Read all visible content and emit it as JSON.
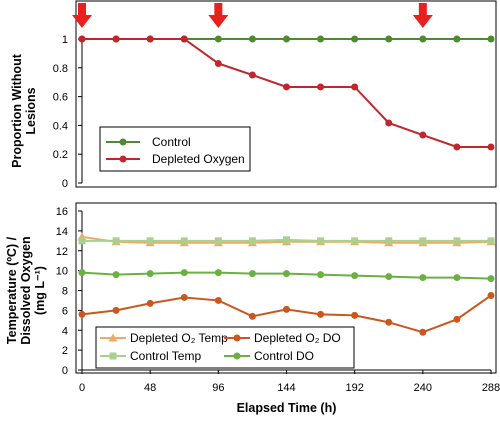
{
  "chart_data": [
    {
      "type": "line",
      "ylabel_lines": [
        "Proportion Without",
        "Lesions"
      ],
      "ylim": [
        0,
        1
      ],
      "yticks": [
        0,
        0.2,
        0.4,
        0.6,
        0.8,
        1
      ],
      "ytick_labels": [
        "0",
        "0.2",
        "0.4",
        "0.6",
        "0.8",
        "1"
      ],
      "xlim": [
        0,
        288
      ],
      "grid": false,
      "legend_position": "bottom-left",
      "arrow_markers_x": [
        0,
        96,
        240
      ],
      "arrow_color": "#e8201e",
      "series": [
        {
          "name": "Control",
          "color": "#4e8a2e",
          "marker": "circle",
          "x": [
            0,
            24,
            48,
            72,
            96,
            120,
            144,
            168,
            192,
            216,
            240,
            264,
            288
          ],
          "values": [
            1,
            1,
            1,
            1,
            1,
            1,
            1,
            1,
            1,
            1,
            1,
            1,
            1
          ]
        },
        {
          "name": "Depleted Oxygen",
          "color": "#c0272d",
          "marker": "circle",
          "x": [
            0,
            24,
            48,
            72,
            96,
            120,
            144,
            168,
            192,
            216,
            240,
            264,
            288
          ],
          "values": [
            1,
            1,
            1,
            1,
            0.83,
            0.75,
            0.667,
            0.667,
            0.667,
            0.417,
            0.333,
            0.25,
            0.25
          ]
        }
      ]
    },
    {
      "type": "line",
      "xlabel": "Elapsed Time (h)",
      "ylabel_lines": [
        "Temperature (ºC) /",
        "Dissolved Oxygen",
        "(mg L⁻¹)"
      ],
      "xlim": [
        0,
        288
      ],
      "xticks": [
        0,
        48,
        96,
        144,
        192,
        240,
        288
      ],
      "xtick_labels": [
        "0",
        "48",
        "96",
        "144",
        "192",
        "240",
        "288"
      ],
      "ylim": [
        0,
        16
      ],
      "yticks": [
        0,
        2,
        4,
        6,
        8,
        10,
        12,
        14,
        16
      ],
      "ytick_labels": [
        "0",
        "2",
        "4",
        "6",
        "8",
        "10",
        "12",
        "14",
        "16"
      ],
      "grid": false,
      "legend_position": "bottom-center",
      "series": [
        {
          "name": "Depleted O₂ Temp",
          "color": "#f0a868",
          "marker": "triangle",
          "x": [
            0,
            24,
            48,
            72,
            96,
            120,
            144,
            168,
            192,
            216,
            240,
            264,
            288
          ],
          "values": [
            13.4,
            12.9,
            12.8,
            12.8,
            12.8,
            12.8,
            12.9,
            12.9,
            12.9,
            12.8,
            12.8,
            12.8,
            12.9
          ]
        },
        {
          "name": "Depleted O₂ DO",
          "color": "#c8581e",
          "marker": "circle",
          "x": [
            0,
            24,
            48,
            72,
            96,
            120,
            144,
            168,
            192,
            216,
            240,
            264,
            288
          ],
          "values": [
            5.6,
            6.0,
            6.7,
            7.3,
            7.0,
            5.4,
            6.1,
            5.6,
            5.5,
            4.8,
            3.8,
            5.1,
            7.5
          ]
        },
        {
          "name": "Control Temp",
          "color": "#a9d18e",
          "marker": "square",
          "x": [
            0,
            24,
            48,
            72,
            96,
            120,
            144,
            168,
            192,
            216,
            240,
            264,
            288
          ],
          "values": [
            13.0,
            13.0,
            13.0,
            13.0,
            13.0,
            13.0,
            13.1,
            13.0,
            13.0,
            13.0,
            13.0,
            13.0,
            13.0
          ]
        },
        {
          "name": "Control DO",
          "color": "#6ab043",
          "marker": "circle",
          "x": [
            0,
            24,
            48,
            72,
            96,
            120,
            144,
            168,
            192,
            216,
            240,
            264,
            288
          ],
          "values": [
            9.8,
            9.6,
            9.7,
            9.8,
            9.8,
            9.7,
            9.7,
            9.6,
            9.5,
            9.4,
            9.3,
            9.3,
            9.2
          ]
        }
      ]
    }
  ]
}
